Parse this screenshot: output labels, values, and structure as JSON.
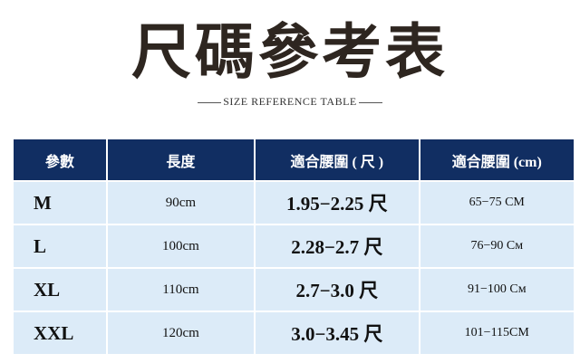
{
  "title": "尺碼參考表",
  "subtitle": "SIZE REFERENCE TABLE",
  "table": {
    "headers": [
      "參數",
      "長度",
      "適合腰圍 ( 尺 )",
      "適合腰圍 (cm)"
    ],
    "rows": [
      [
        "M",
        "90cm",
        "1.95−2.25 尺",
        "65−75 CM"
      ],
      [
        "L",
        "100cm",
        "2.28−2.7 尺",
        "76−90 Cм"
      ],
      [
        "XL",
        "110cm",
        "2.7−3.0 尺",
        "91−100 Cм"
      ],
      [
        "XXL",
        "120cm",
        "3.0−3.45 尺",
        "101−115CM"
      ]
    ]
  },
  "colors": {
    "header_bg": "#112e62",
    "cell_bg": "#dcebf8",
    "title": "#2e2620"
  }
}
